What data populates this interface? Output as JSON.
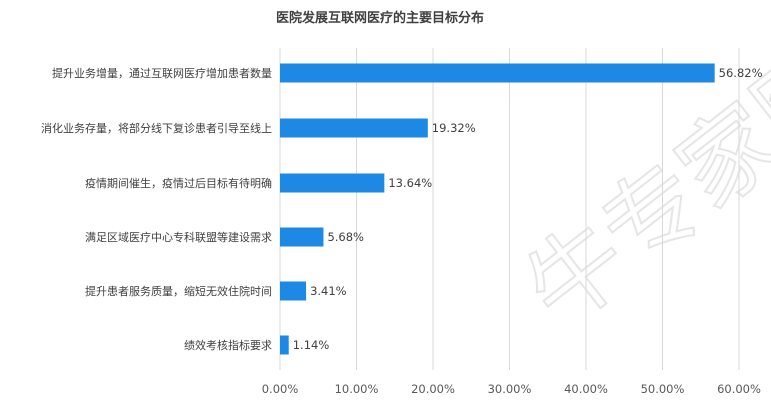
{
  "watermark": "牛专家网",
  "chart_data": {
    "type": "bar",
    "orientation": "horizontal",
    "title": "医院发展互联网医疗的主要目标分布",
    "xlabel": "",
    "ylabel": "",
    "categories": [
      "提升业务增量，通过互联网医疗增加患者数量",
      "消化业务存量，将部分线下复诊患者引导至线上",
      "疫情期间催生，疫情过后目标有待明确",
      "满足区域医疗中心专科联盟等建设需求",
      "提升患者服务质量，缩短无效住院时间",
      "绩效考核指标要求"
    ],
    "values": [
      56.82,
      19.32,
      13.64,
      5.68,
      3.41,
      1.14
    ],
    "data_labels": [
      "56.82%",
      "19.32%",
      "13.64%",
      "5.68%",
      "3.41%",
      "1.14%"
    ],
    "xlim": [
      0,
      60
    ],
    "xticks": [
      0,
      10,
      20,
      30,
      40,
      50,
      60
    ],
    "xtick_labels": [
      "0.00%",
      "10.00%",
      "20.00%",
      "30.00%",
      "40.00%",
      "50.00%",
      "60.00%"
    ],
    "grid": "vertical",
    "legend": "none",
    "colors": {
      "bar": "#1e88e5",
      "grid": "#d9d9d9"
    }
  }
}
